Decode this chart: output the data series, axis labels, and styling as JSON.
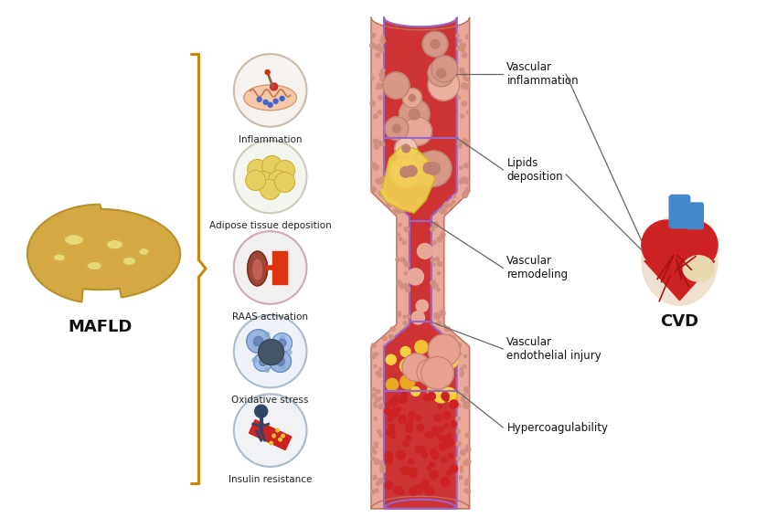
{
  "background_color": "#ffffff",
  "mafld_label": "MAFLD",
  "cvd_label": "CVD",
  "left_labels": [
    "Inflammation",
    "Adipose tissue deposition",
    "RAAS activation",
    "Oxidative stress",
    "Insulin resistance"
  ],
  "right_labels": [
    "Vascular\ninflammation",
    "Lipids\ndeposition",
    "Vascular\nremodeling",
    "Vascular\nendothelial injury",
    "Hypercoagulability"
  ],
  "bracket_color": "#C8860A",
  "liver_color": "#D4A843",
  "liver_dark": "#B8922A",
  "liver_spot_color": "#E8D878",
  "vessel_outer_color": "#EAA898",
  "vessel_lumen_color": "#CD3333",
  "vessel_wall_outline": "#C07060",
  "vessel_dot_color": "#D09080",
  "purple_line_color": "#9966CC",
  "lipid_color": "#F0D050",
  "annotation_line_color": "#666666",
  "heart_red": "#CC2222",
  "heart_blue": "#4488CC",
  "heart_cream": "#E8D8B0"
}
